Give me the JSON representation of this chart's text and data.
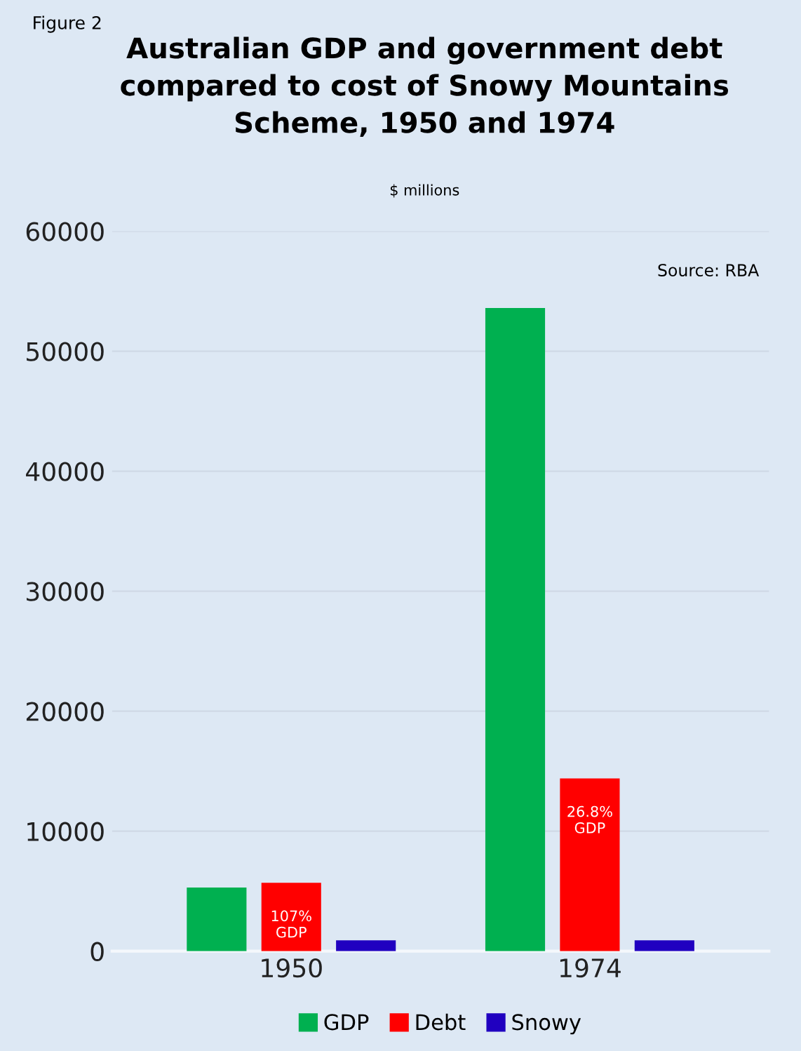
{
  "chart_data": {
    "type": "bar",
    "title": "Australian GDP and government debt\ncompared to cost of Snowy Mountains\nScheme, 1950 and 1974",
    "subtitle": "$ millions",
    "categories": [
      "1950",
      "1974"
    ],
    "series": [
      {
        "name": "GDP",
        "color": "#00b050",
        "values": [
          5300,
          53600
        ]
      },
      {
        "name": "Debt",
        "color": "#ff0000",
        "values": [
          5700,
          14400
        ]
      },
      {
        "name": "Snowy",
        "color": "#2000c0",
        "values": [
          900,
          900
        ]
      }
    ],
    "ylim": [
      0,
      60000
    ],
    "yticks": [
      0,
      10000,
      20000,
      30000,
      40000,
      50000,
      60000
    ],
    "grid": "y",
    "legend": "bottom",
    "annotations": [
      "Figure 2",
      "Source: RBA",
      {
        "text": "107%\nGDP",
        "x": "1950",
        "y": 5700
      },
      {
        "text": "26.8%\nGDP",
        "x": "1974",
        "y": 14400
      }
    ]
  }
}
